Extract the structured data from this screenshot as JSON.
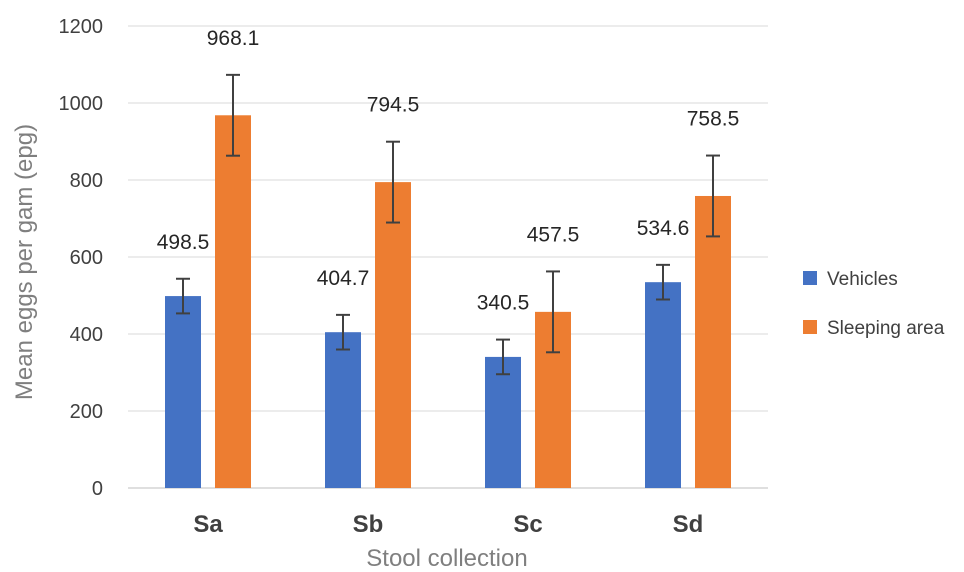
{
  "chart_data": {
    "type": "bar",
    "xlabel": "Stool collection",
    "ylabel": "Mean eggs per gam (epg)",
    "ylim": [
      0,
      1200
    ],
    "yticks": [
      0,
      200,
      400,
      600,
      800,
      1000,
      1200
    ],
    "categories": [
      "Sa",
      "Sb",
      "Sc",
      "Sd"
    ],
    "grid": true,
    "legend_position": "right",
    "series": [
      {
        "name": "Vehicles",
        "color": "#4472c4",
        "values": [
          498.5,
          404.7,
          340.5,
          534.6
        ],
        "labels": [
          "498.5",
          "404.7",
          "340.5",
          "534.6"
        ],
        "error": [
          45,
          45,
          45,
          45
        ]
      },
      {
        "name": "Sleeping area",
        "color": "#ed7d31",
        "values": [
          968.1,
          794.5,
          457.5,
          758.5
        ],
        "labels": [
          "968.1",
          "794.5",
          "457.5",
          "758.5"
        ],
        "error": [
          105,
          105,
          105,
          105
        ]
      }
    ]
  }
}
